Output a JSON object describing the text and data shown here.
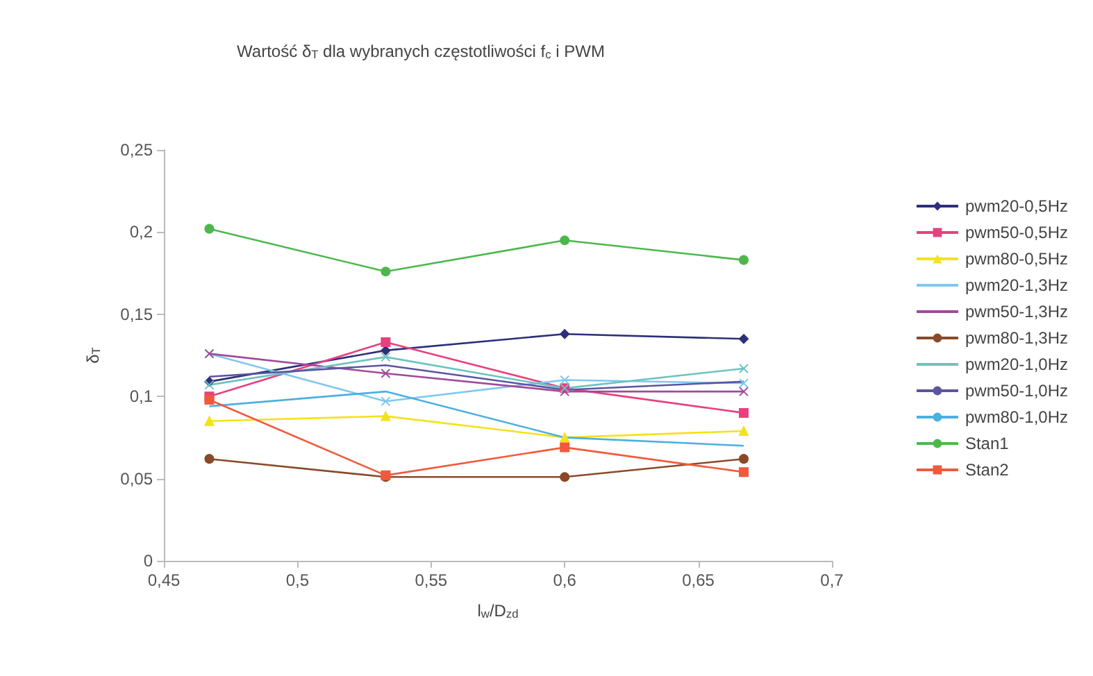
{
  "chart_data": {
    "type": "line",
    "title": "Wartość δ$_{T}$ dla wybranych częstotliwości f$_{c}$ i PWM",
    "xlabel": "l$_{w}$/D$_{zd}$",
    "ylabel": "δ$_{T}$",
    "x": [
      0.467,
      0.533,
      0.6,
      0.667
    ],
    "xlim": [
      0.45,
      0.7
    ],
    "xticks": [
      {
        "value": 0.45,
        "label": "0,45"
      },
      {
        "value": 0.5,
        "label": "0,5"
      },
      {
        "value": 0.55,
        "label": "0,55"
      },
      {
        "value": 0.6,
        "label": "0,6"
      },
      {
        "value": 0.65,
        "label": "0,65"
      },
      {
        "value": 0.7,
        "label": "0,7"
      }
    ],
    "ylim": [
      0,
      0.25
    ],
    "yticks": [
      0,
      {
        "value": 0.05,
        "label": "0,05"
      },
      {
        "value": 0.1,
        "label": "0,1"
      },
      {
        "value": 0.15,
        "label": "0,15"
      },
      {
        "value": 0.2,
        "label": "0,2"
      },
      {
        "value": 0.25,
        "label": "0,25"
      }
    ],
    "grid": false,
    "legend": "right",
    "line_style": "solid",
    "series": [
      {
        "name": "pwm20-0,5Hz",
        "color": "#2e2f7a",
        "marker": "diamond",
        "values": [
          0.109,
          0.128,
          0.138,
          0.135
        ]
      },
      {
        "name": "pwm50-0,5Hz",
        "color": "#e8407e",
        "marker": "square",
        "values": [
          0.1,
          0.133,
          0.105,
          0.09
        ]
      },
      {
        "name": "pwm80-0,5Hz",
        "color": "#f4e21a",
        "marker": "triangle",
        "values": [
          0.085,
          0.088,
          0.075,
          0.079
        ]
      },
      {
        "name": "pwm20-1,3Hz",
        "color": "#7fc8f0",
        "marker": "cross",
        "values": [
          0.126,
          0.097,
          0.11,
          0.108
        ]
      },
      {
        "name": "pwm50-1,3Hz",
        "color": "#a04a9a",
        "marker": "cross",
        "values": [
          0.126,
          0.114,
          0.103,
          0.103
        ]
      },
      {
        "name": "pwm80-1,3Hz",
        "color": "#8a4a2a",
        "marker": "circle",
        "values": [
          0.062,
          0.051,
          0.051,
          0.062
        ]
      },
      {
        "name": "pwm20-1,0Hz",
        "color": "#6ec2c0",
        "marker": "cross",
        "values": [
          0.107,
          0.124,
          0.105,
          0.117
        ]
      },
      {
        "name": "pwm50-1,0Hz",
        "color": "#5a55a0",
        "marker": "none",
        "values": [
          0.112,
          0.119,
          0.104,
          0.109
        ]
      },
      {
        "name": "pwm80-1,0Hz",
        "color": "#4ab0e0",
        "marker": "none",
        "values": [
          0.094,
          0.103,
          0.075,
          0.07
        ]
      },
      {
        "name": "Stan1",
        "color": "#4cb84c",
        "marker": "circle",
        "values": [
          0.202,
          0.176,
          0.195,
          0.183
        ]
      },
      {
        "name": "Stan2",
        "color": "#f05a3c",
        "marker": "square",
        "values": [
          0.098,
          0.052,
          0.069,
          0.054
        ]
      }
    ]
  }
}
